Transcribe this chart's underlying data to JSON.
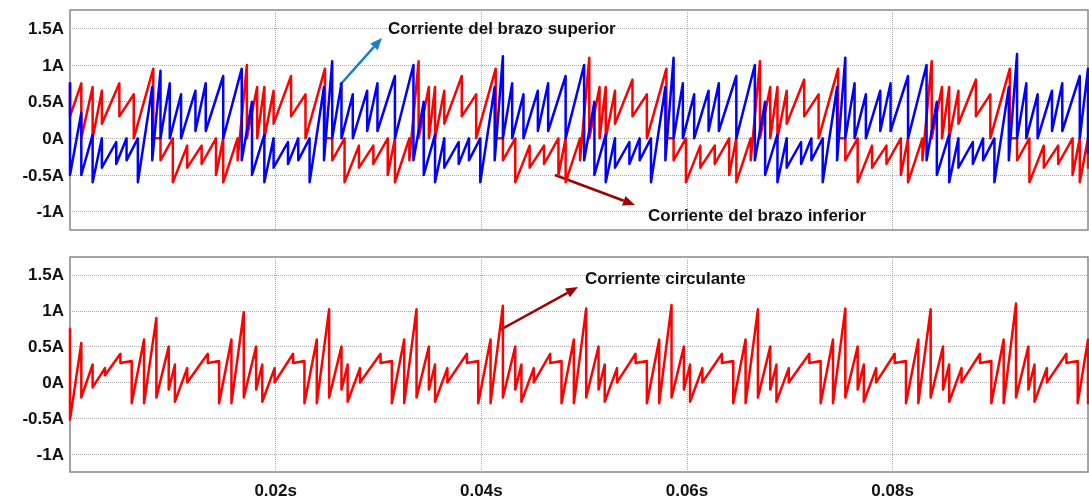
{
  "chart_data": [
    {
      "type": "line",
      "xlim": [
        0,
        0.099
      ],
      "ylim": [
        -1.25,
        1.75
      ],
      "xticks": [
        {
          "value": 0.02,
          "label": null
        },
        {
          "value": 0.04,
          "label": null
        },
        {
          "value": 0.06,
          "label": null
        },
        {
          "value": 0.08,
          "label": null
        }
      ],
      "yticks": [
        {
          "value": -1,
          "label": "-1A"
        },
        {
          "value": -0.5,
          "label": "-0.5A"
        },
        {
          "value": 0,
          "label": "0A"
        },
        {
          "value": 0.5,
          "label": "0.5A"
        },
        {
          "value": 1,
          "label": "1A"
        },
        {
          "value": 1.5,
          "label": "1.5A"
        }
      ],
      "grid": true,
      "tick_labels": "y",
      "line_style": "solid",
      "annotations": [
        "Corriente del brazo superior",
        "Corriente del brazo inferior"
      ],
      "series": [
        {
          "color": "#ff0000",
          "x": [
            0,
            0,
            0.0011,
            0.0011,
            0.0022,
            0.0022,
            0.0031,
            0.0031,
            0.0048,
            0.0048,
            0.0062,
            0.0062,
            0.0081,
            0.0081,
            0.0088,
            0.0088,
            0.01,
            0.01,
            0.0114,
            0.0114,
            0.0128,
            0.0128,
            0.0142,
            0.0142,
            0.0149,
            0.0149,
            0.0163,
            0.0163,
            0.0172,
            0.0172,
            0.0182,
            0.0182,
            0.0189,
            0.0189,
            0.0198,
            0.0198,
            0.0215,
            0.0215,
            0.0229,
            0.0229,
            0.0248,
            0.0248,
            0.0255,
            0.0255,
            0.0267,
            0.0267,
            0.0281,
            0.0281,
            0.0295,
            0.0295,
            0.0309,
            0.0309,
            0.0316,
            0.0316,
            0.033,
            0.033,
            0.0339,
            0.0339,
            0.0349,
            0.0349,
            0.0355,
            0.0355,
            0.0364,
            0.0364,
            0.0381,
            0.0381,
            0.0395,
            0.0395,
            0.0414,
            0.0414,
            0.0421,
            0.0421,
            0.0433,
            0.0433,
            0.0447,
            0.0447,
            0.0461,
            0.0461,
            0.0475,
            0.0475,
            0.0482,
            0.0482,
            0.0496,
            0.0496,
            0.0505,
            0.0505,
            0.0515,
            0.0515,
            0.0521,
            0.0521,
            0.053,
            0.053,
            0.0547,
            0.0547,
            0.0561,
            0.0561,
            0.058,
            0.058,
            0.0587,
            0.0587,
            0.0599,
            0.0599,
            0.0613,
            0.0613,
            0.0627,
            0.0627,
            0.0641,
            0.0641,
            0.0648,
            0.0648,
            0.0662,
            0.0662,
            0.0671,
            0.0671,
            0.0681,
            0.0681,
            0.0688,
            0.0688,
            0.0697,
            0.0697,
            0.0714,
            0.0714,
            0.0728,
            0.0728,
            0.0747,
            0.0747,
            0.0754,
            0.0754,
            0.0766,
            0.0766,
            0.078,
            0.078,
            0.0794,
            0.0794,
            0.0808,
            0.0808,
            0.0815,
            0.0815,
            0.0829,
            0.0829,
            0.0838,
            0.0838,
            0.0848,
            0.0848,
            0.0855,
            0.0855,
            0.0864,
            0.0864,
            0.0881,
            0.0881,
            0.0895,
            0.0895,
            0.0914,
            0.0914,
            0.0921,
            0.0921,
            0.0933,
            0.0933,
            0.0947,
            0.0947,
            0.0961,
            0.0961,
            0.0975,
            0.0975,
            0.0982,
            0.0982,
            0.099,
            0.099
          ],
          "values": [
            0.75,
            0.3,
            0.75,
            0,
            0.7,
            0,
            0.65,
            0.2,
            0.75,
            0.3,
            0.6,
            0,
            0.95,
            0,
            0,
            -0.3,
            0,
            -0.6,
            -0.1,
            -0.4,
            -0.1,
            -0.35,
            0,
            -0.5,
            0,
            -0.6,
            0,
            -0.3,
            1,
            0,
            0.7,
            0,
            0.7,
            0,
            0.65,
            0.2,
            0.85,
            0.3,
            0.6,
            0,
            0.95,
            0,
            0,
            -0.3,
            0,
            -0.6,
            -0.1,
            -0.4,
            -0.1,
            -0.35,
            0,
            -0.5,
            0,
            -0.6,
            0,
            -0.3,
            1.05,
            0,
            0.7,
            0,
            0.7,
            0,
            0.65,
            0.2,
            0.85,
            0.3,
            0.6,
            0,
            0.95,
            0,
            0,
            -0.3,
            0,
            -0.6,
            -0.1,
            -0.4,
            -0.1,
            -0.35,
            0,
            -0.5,
            0,
            -0.6,
            0,
            -0.3,
            1.1,
            0,
            0.7,
            0,
            0.7,
            0,
            0.65,
            0.2,
            0.8,
            0.3,
            0.6,
            0,
            0.95,
            0,
            0,
            -0.3,
            0,
            -0.6,
            -0.1,
            -0.4,
            -0.1,
            -0.35,
            0,
            -0.5,
            0,
            -0.6,
            0,
            -0.3,
            1.05,
            0,
            0.7,
            0,
            0.7,
            0,
            0.65,
            0.2,
            0.8,
            0.3,
            0.6,
            0,
            0.95,
            0,
            0,
            -0.3,
            0,
            -0.6,
            -0.1,
            -0.4,
            -0.1,
            -0.35,
            0,
            -0.5,
            0,
            -0.6,
            0,
            -0.3,
            1.05,
            0,
            0.7,
            0,
            0.7,
            0,
            0.65,
            0.2,
            0.8,
            0.3,
            0.6,
            0,
            0.95,
            0,
            0,
            -0.3,
            0,
            -0.6,
            -0.1,
            -0.4,
            -0.1,
            -0.35,
            0,
            -0.5,
            0,
            -0.6,
            0,
            -0.4
          ]
        },
        {
          "color": "#0000ff",
          "x": [
            0,
            0,
            0.0011,
            0.0011,
            0.0022,
            0.0022,
            0.0031,
            0.0031,
            0.0045,
            0.0045,
            0.0055,
            0.0055,
            0.0066,
            0.0066,
            0.008,
            0.008,
            0.0088,
            0.0088,
            0.0097,
            0.0097,
            0.0108,
            0.0108,
            0.0122,
            0.0122,
            0.0132,
            0.0132,
            0.0149,
            0.0149,
            0.0167,
            0.0167,
            0.0177,
            0.0177,
            0.0189,
            0.0189,
            0.0198,
            0.0198,
            0.0212,
            0.0212,
            0.0222,
            0.0222,
            0.0233,
            0.0233,
            0.0247,
            0.0247,
            0.0255,
            0.0255,
            0.0264,
            0.0264,
            0.0275,
            0.0275,
            0.0289,
            0.0289,
            0.0299,
            0.0299,
            0.0316,
            0.0316,
            0.0334,
            0.0334,
            0.0344,
            0.0344,
            0.0355,
            0.0355,
            0.0364,
            0.0364,
            0.0378,
            0.0378,
            0.0388,
            0.0388,
            0.0399,
            0.0399,
            0.0413,
            0.0413,
            0.0421,
            0.0421,
            0.043,
            0.043,
            0.0441,
            0.0441,
            0.0455,
            0.0455,
            0.0465,
            0.0465,
            0.0482,
            0.0482,
            0.05,
            0.05,
            0.051,
            0.051,
            0.0521,
            0.0521,
            0.053,
            0.053,
            0.0544,
            0.0544,
            0.0554,
            0.0554,
            0.0565,
            0.0565,
            0.0579,
            0.0579,
            0.0587,
            0.0587,
            0.0596,
            0.0596,
            0.0607,
            0.0607,
            0.0621,
            0.0621,
            0.0631,
            0.0631,
            0.0648,
            0.0648,
            0.0666,
            0.0666,
            0.0676,
            0.0676,
            0.0688,
            0.0688,
            0.0697,
            0.0697,
            0.0711,
            0.0711,
            0.0721,
            0.0721,
            0.0732,
            0.0732,
            0.0746,
            0.0746,
            0.0754,
            0.0754,
            0.0763,
            0.0763,
            0.0774,
            0.0774,
            0.0788,
            0.0788,
            0.0798,
            0.0798,
            0.0815,
            0.0815,
            0.0833,
            0.0833,
            0.0843,
            0.0843,
            0.0855,
            0.0855,
            0.0864,
            0.0864,
            0.0878,
            0.0878,
            0.0888,
            0.0888,
            0.0899,
            0.0899,
            0.0913,
            0.0913,
            0.0921,
            0.0921,
            0.093,
            0.093,
            0.0941,
            0.0941,
            0.0955,
            0.0955,
            0.0965,
            0.0965,
            0.0982,
            0.0982,
            0.099,
            0.099
          ],
          "values": [
            0.75,
            -0.5,
            0.35,
            -0.5,
            0.05,
            -0.6,
            0,
            -0.4,
            -0.05,
            -0.35,
            0,
            -0.3,
            0,
            -0.6,
            0.7,
            -0.3,
            0.92,
            0,
            0.75,
            0,
            0.6,
            0,
            0.65,
            0.1,
            0.75,
            0.1,
            0.85,
            0,
            0.95,
            -0.3,
            0.5,
            -0.5,
            0.05,
            -0.6,
            0,
            -0.4,
            -0.05,
            -0.35,
            0,
            -0.3,
            0,
            -0.6,
            0.7,
            -0.3,
            1.05,
            0,
            0.75,
            0,
            0.6,
            0,
            0.65,
            0.1,
            0.75,
            0.1,
            0.85,
            0,
            1,
            -0.3,
            0.5,
            -0.5,
            0.05,
            -0.6,
            0,
            -0.4,
            -0.05,
            -0.35,
            0,
            -0.3,
            0,
            -0.6,
            0.7,
            -0.3,
            1.12,
            0,
            0.75,
            0,
            0.6,
            0,
            0.65,
            0.1,
            0.75,
            0.1,
            0.85,
            0,
            1,
            -0.3,
            0.5,
            -0.5,
            0.05,
            -0.6,
            0,
            -0.4,
            -0.05,
            -0.35,
            0,
            -0.3,
            0,
            -0.6,
            0.7,
            -0.3,
            1.1,
            0,
            0.75,
            0,
            0.6,
            0,
            0.65,
            0.1,
            0.75,
            0.1,
            0.85,
            0,
            1,
            -0.3,
            0.5,
            -0.5,
            0.05,
            -0.6,
            0,
            -0.4,
            -0.05,
            -0.35,
            0,
            -0.3,
            0,
            -0.6,
            0.7,
            -0.3,
            1.1,
            0,
            0.75,
            0,
            0.6,
            0,
            0.65,
            0.1,
            0.75,
            0.1,
            0.85,
            0,
            1,
            -0.3,
            0.5,
            -0.5,
            0.05,
            -0.6,
            0,
            -0.4,
            -0.05,
            -0.35,
            0,
            -0.3,
            0,
            -0.6,
            0.7,
            -0.3,
            1.15,
            0,
            0.75,
            0,
            0.6,
            0,
            0.65,
            0.1,
            0.75,
            0.1,
            0.85,
            0,
            0.95,
            -0.2
          ]
        }
      ]
    },
    {
      "type": "line",
      "xlim": [
        0,
        0.099
      ],
      "ylim": [
        -1.25,
        1.75
      ],
      "xticks": [
        {
          "value": 0.02,
          "label": "0.02s"
        },
        {
          "value": 0.04,
          "label": "0.04s"
        },
        {
          "value": 0.06,
          "label": "0.06s"
        },
        {
          "value": 0.08,
          "label": "0.08s"
        }
      ],
      "yticks": [
        {
          "value": -1,
          "label": "-1A"
        },
        {
          "value": -0.5,
          "label": "-0.5A"
        },
        {
          "value": 0,
          "label": "0A"
        },
        {
          "value": 0.5,
          "label": "0.5A"
        },
        {
          "value": 1,
          "label": "1A"
        },
        {
          "value": 1.5,
          "label": "1.5A"
        }
      ],
      "grid": true,
      "line_style": "solid",
      "annotations": [
        "Corriente circulante"
      ],
      "series": [
        {
          "color": "#ff0000",
          "x": [
            0,
            0,
            0.0011,
            0.0011,
            0.0022,
            0.0022,
            0.0034,
            0.0034,
            0.0049,
            0.0049,
            0.006,
            0.006,
            0.0072,
            0.0072,
            0.0084,
            0.0084,
            0.0096,
            0.0096,
            0.0102,
            0.0102,
            0.0114,
            0.0114,
            0.0134,
            0.0134,
            0.0145,
            0.0145,
            0.0157,
            0.0157,
            0.0169,
            0.0169,
            0.0181,
            0.0181,
            0.0187,
            0.0187,
            0.0199,
            0.0199,
            0.0217,
            0.0217,
            0.0228,
            0.0228,
            0.024,
            0.024,
            0.0252,
            0.0252,
            0.0264,
            0.0264,
            0.027,
            0.027,
            0.0282,
            0.0282,
            0.0302,
            0.0302,
            0.0313,
            0.0313,
            0.0325,
            0.0325,
            0.0337,
            0.0337,
            0.0349,
            0.0349,
            0.0355,
            0.0355,
            0.0367,
            0.0367,
            0.0386,
            0.0386,
            0.0397,
            0.0397,
            0.0409,
            0.0409,
            0.0421,
            0.0421,
            0.0433,
            0.0433,
            0.0439,
            0.0439,
            0.0451,
            0.0451,
            0.0467,
            0.0467,
            0.0478,
            0.0478,
            0.049,
            0.049,
            0.0502,
            0.0502,
            0.0514,
            0.0514,
            0.052,
            0.052,
            0.0532,
            0.0532,
            0.055,
            0.055,
            0.0561,
            0.0561,
            0.0573,
            0.0573,
            0.0585,
            0.0585,
            0.0597,
            0.0597,
            0.0603,
            0.0603,
            0.0615,
            0.0615,
            0.0634,
            0.0634,
            0.0645,
            0.0645,
            0.0657,
            0.0657,
            0.0669,
            0.0669,
            0.0681,
            0.0681,
            0.0687,
            0.0687,
            0.0699,
            0.0699,
            0.0719,
            0.0719,
            0.073,
            0.073,
            0.0742,
            0.0742,
            0.0754,
            0.0754,
            0.0766,
            0.0766,
            0.0772,
            0.0772,
            0.0784,
            0.0784,
            0.0802,
            0.0802,
            0.0813,
            0.0813,
            0.0825,
            0.0825,
            0.0837,
            0.0837,
            0.0849,
            0.0849,
            0.0855,
            0.0855,
            0.0867,
            0.0867,
            0.0885,
            0.0885,
            0.0896,
            0.0896,
            0.0908,
            0.0908,
            0.092,
            0.092,
            0.0932,
            0.0932,
            0.0938,
            0.0938,
            0.095,
            0.095,
            0.0969,
            0.0969,
            0.098,
            0.098,
            0.099,
            0.099
          ],
          "values": [
            0.75,
            -0.52,
            0.55,
            -0.21,
            0.25,
            -0.07,
            0.2,
            0.1,
            0.4,
            0.27,
            0.3,
            -0.29,
            0.6,
            -0.29,
            0.9,
            -0.21,
            0.5,
            -0.1,
            0.25,
            -0.27,
            0.2,
            0,
            0.4,
            0.27,
            0.3,
            -0.29,
            0.6,
            -0.29,
            0.98,
            -0.21,
            0.5,
            -0.1,
            0.25,
            -0.27,
            0.2,
            0,
            0.4,
            0.27,
            0.3,
            -0.29,
            0.6,
            -0.29,
            1.02,
            -0.21,
            0.5,
            -0.1,
            0.25,
            -0.27,
            0.2,
            0,
            0.4,
            0.27,
            0.3,
            -0.29,
            0.6,
            -0.29,
            1.02,
            -0.21,
            0.5,
            -0.1,
            0.25,
            -0.27,
            0.2,
            0,
            0.4,
            0.27,
            0.3,
            -0.29,
            0.6,
            -0.29,
            1.07,
            -0.21,
            0.5,
            -0.1,
            0.25,
            -0.27,
            0.2,
            0,
            0.4,
            0.27,
            0.3,
            -0.29,
            0.6,
            -0.29,
            1.03,
            -0.21,
            0.5,
            -0.1,
            0.25,
            -0.27,
            0.2,
            0,
            0.4,
            0.27,
            0.3,
            -0.29,
            0.6,
            -0.29,
            1.08,
            -0.21,
            0.5,
            -0.1,
            0.25,
            -0.27,
            0.2,
            0,
            0.4,
            0.27,
            0.3,
            -0.29,
            0.6,
            -0.29,
            1.02,
            -0.21,
            0.5,
            -0.1,
            0.25,
            -0.27,
            0.2,
            0,
            0.4,
            0.27,
            0.3,
            -0.29,
            0.6,
            -0.29,
            1.03,
            -0.21,
            0.5,
            -0.1,
            0.25,
            -0.27,
            0.2,
            0,
            0.4,
            0.27,
            0.3,
            -0.29,
            0.6,
            -0.29,
            1.02,
            -0.21,
            0.5,
            -0.1,
            0.25,
            -0.27,
            0.2,
            0,
            0.4,
            0.27,
            0.3,
            -0.29,
            0.6,
            -0.29,
            1.1,
            -0.21,
            0.5,
            -0.1,
            0.25,
            -0.27,
            0.2,
            0,
            0.4,
            0.27,
            0.3,
            -0.29,
            0.6,
            -0.29
          ]
        }
      ]
    }
  ]
}
